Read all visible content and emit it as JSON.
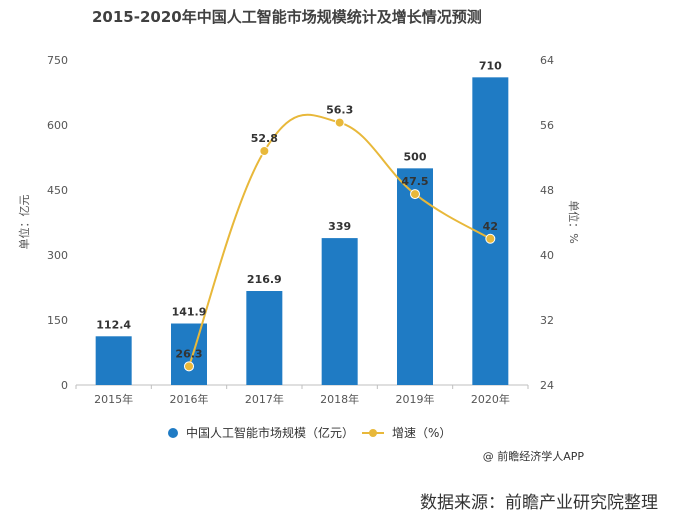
{
  "title": "2015-2020年中国人工智能市场规模统计及增长情况预测",
  "credit": "@ 前瞻经济学人APP",
  "source": "数据来源：前瞻产业研究院整理",
  "colors": {
    "bar": "#1f7bc4",
    "line": "#e8b83a"
  },
  "chart_data": {
    "type": "bar",
    "categories": [
      "2015年",
      "2016年",
      "2017年",
      "2018年",
      "2019年",
      "2020年"
    ],
    "series": [
      {
        "name": "中国人工智能市场规模（亿元）",
        "type": "bar",
        "axis": "left",
        "values": [
          112.4,
          141.9,
          216.9,
          339,
          500,
          710
        ]
      },
      {
        "name": "增速（%）",
        "type": "line",
        "axis": "right",
        "values": [
          null,
          26.3,
          52.8,
          56.3,
          47.5,
          42
        ]
      }
    ],
    "y_left": {
      "label": "单位：亿元",
      "ylim": [
        0,
        750
      ],
      "ticks": [
        0,
        150,
        300,
        450,
        600,
        750
      ]
    },
    "y_right": {
      "label": "单位：%",
      "ylim": [
        24,
        64
      ],
      "ticks": [
        24,
        32,
        40,
        48,
        56,
        64
      ]
    },
    "legend_position": "bottom-center",
    "grid": false
  }
}
